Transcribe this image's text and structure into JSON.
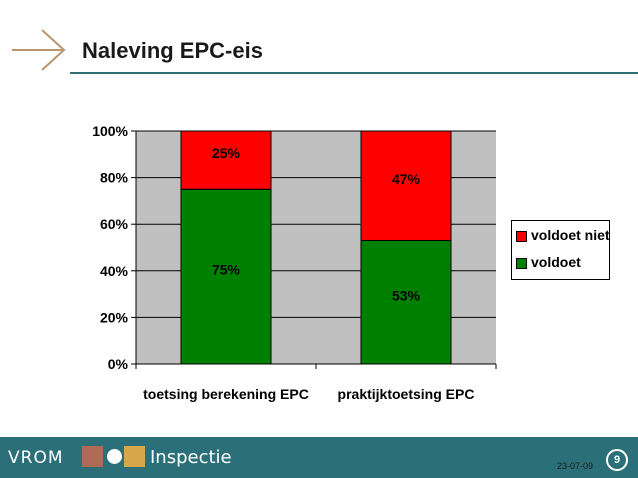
{
  "slide": {
    "title": "Naleving EPC-eis"
  },
  "footer": {
    "brand": "VROM",
    "division": "Inspectie",
    "date": "23-07-09",
    "page_number": "9"
  },
  "colors": {
    "voldoet_niet": "#ff0000",
    "voldoet": "#008000",
    "plot_bg": "#c0c0c0",
    "footer_bg": "#2b7079"
  },
  "chart_data": {
    "type": "bar",
    "stacked": true,
    "categories": [
      "toetsing berekening EPC",
      "praktijktoetsing EPC"
    ],
    "series": [
      {
        "name": "voldoet",
        "values": [
          75,
          53
        ],
        "labels": [
          "75%",
          "53%"
        ]
      },
      {
        "name": "voldoet niet",
        "values": [
          25,
          47
        ],
        "labels": [
          "25%",
          "47%"
        ]
      }
    ],
    "ylim": [
      0,
      100
    ],
    "yticks": [
      "0%",
      "20%",
      "40%",
      "60%",
      "80%",
      "100%"
    ],
    "grid": true,
    "legend": "right",
    "legend_items": [
      "voldoet niet",
      "voldoet"
    ]
  }
}
